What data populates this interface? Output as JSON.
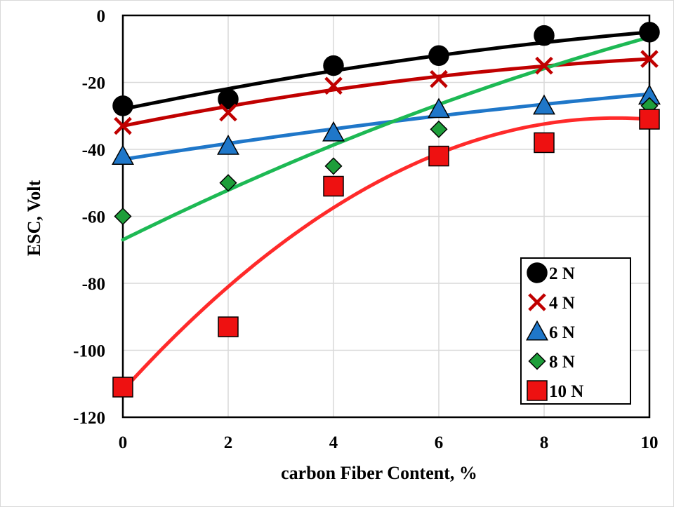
{
  "chart_data": {
    "type": "scatter",
    "xlabel": "carbon Fiber Content, %",
    "ylabel": "ESC, Volt",
    "xlim": [
      0,
      10
    ],
    "ylim": [
      -120,
      0
    ],
    "xticks": [
      "0",
      "2",
      "4",
      "6",
      "8",
      "10"
    ],
    "yticks": [
      "0",
      "-20",
      "-40",
      "-60",
      "-80",
      "-100",
      "-120"
    ],
    "grid": true,
    "legend_position": "bottom-right",
    "x": [
      0,
      2,
      4,
      6,
      8,
      10
    ],
    "series": [
      {
        "name": "2 N",
        "marker": "circle",
        "color": "#000000",
        "trend_color": "#000000",
        "values": [
          -27,
          -25,
          -15,
          -12,
          -6,
          -5
        ],
        "trend_endpoints": [
          -28,
          -5
        ]
      },
      {
        "name": "4 N",
        "marker": "x",
        "color": "#c00000",
        "trend_color": "#c00000",
        "values": [
          -33,
          -29,
          -21,
          -19,
          -15,
          -13
        ],
        "trend_endpoints": [
          -33,
          -13
        ]
      },
      {
        "name": "6 N",
        "marker": "triangle",
        "color": "#1f77c9",
        "trend_color": "#1f77c9",
        "values": [
          -42,
          -39,
          -35,
          -28,
          -27,
          -24
        ],
        "trend_endpoints": [
          -43,
          -23.5
        ]
      },
      {
        "name": "8 N",
        "marker": "diamond",
        "color": "#1e9e3a",
        "trend_color": "#1db954",
        "values": [
          -60,
          -50,
          -45,
          -34,
          null,
          -27
        ],
        "trend_endpoints": [
          -67,
          -6.5
        ]
      },
      {
        "name": "10 N",
        "marker": "square",
        "color": "#ee1111",
        "trend_color": "#ff2a2a",
        "values": [
          -111,
          -93,
          -51,
          -42,
          -38,
          -31
        ],
        "trend_endpoints": [
          -112,
          -31
        ]
      }
    ]
  }
}
